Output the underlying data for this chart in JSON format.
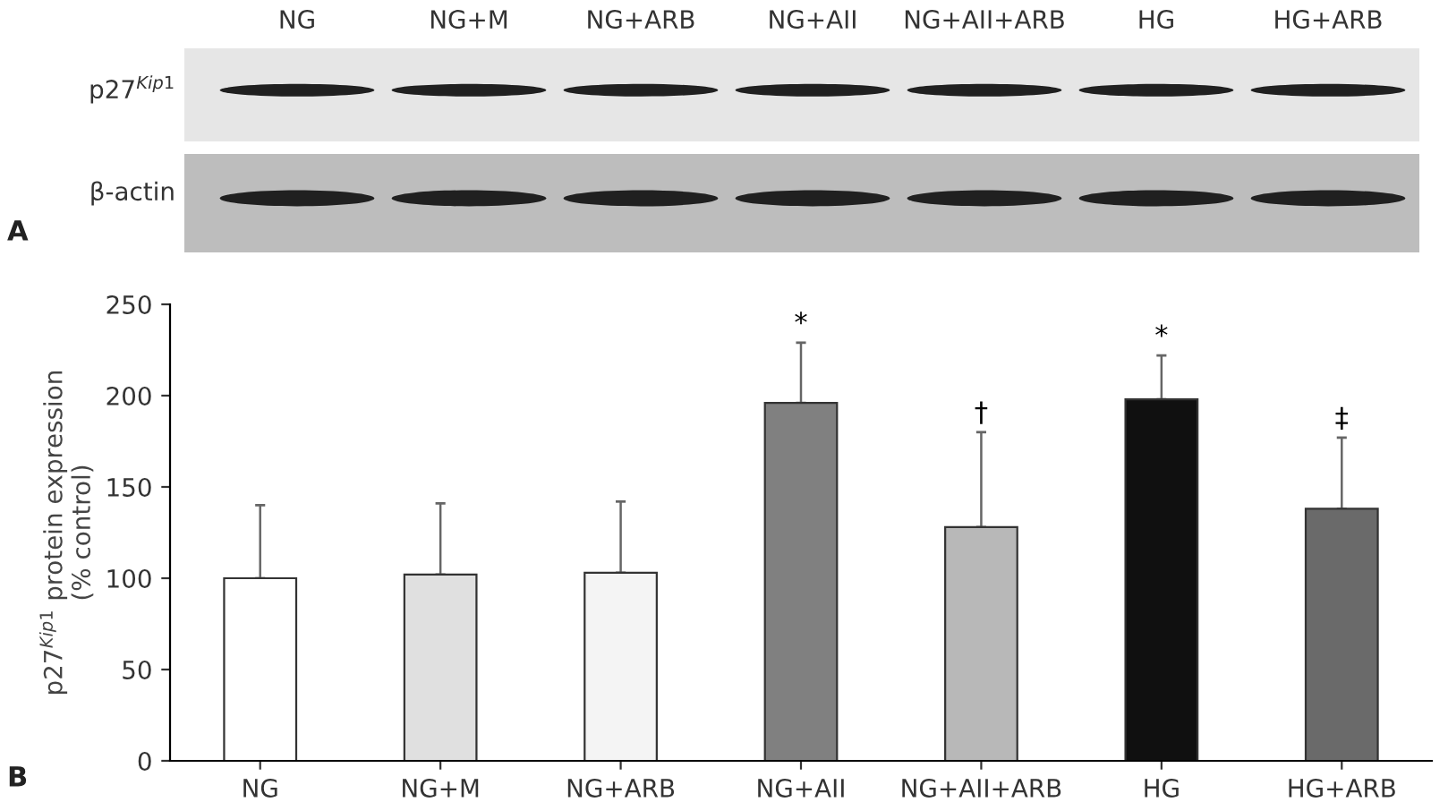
{
  "chart_data": [
    {
      "type": "other",
      "categories": [
        "NG",
        "NG+M",
        "NG+ARB",
        "NG+AII",
        "NG+AII+ARB",
        "HG",
        "HG+ARB"
      ],
      "annotations": [
        "p27$^{Kip1}$",
        "β-actin",
        "A"
      ]
    },
    {
      "type": "bar",
      "categories": [
        "NG",
        "NG+M",
        "NG+ARB",
        "NG+AII",
        "NG+AII+ARB",
        "HG",
        "HG+ARB"
      ],
      "values": [
        100,
        102,
        103,
        196,
        128,
        198,
        138
      ],
      "errors": [
        [
          100,
          140
        ],
        [
          102,
          141
        ],
        [
          103,
          142
        ],
        [
          196,
          229
        ],
        [
          128,
          180
        ],
        [
          198,
          222
        ],
        [
          138,
          177
        ]
      ],
      "colors": [
        "#ffffff",
        "#e0e0e0",
        "#f4f4f4",
        "#808080",
        "#b8b8b8",
        "#101010",
        "#6a6a6a"
      ],
      "ylabel": "p27$^{Kip1}$ protein expression\n(% control)",
      "ylim": [
        0,
        250
      ],
      "yticks": [
        0,
        50,
        100,
        150,
        200,
        250
      ],
      "grid": false,
      "legend": false,
      "annotations": [
        {
          "text": "*",
          "x": "NG+AII",
          "y": 229
        },
        {
          "text": "†",
          "x": "NG+AII+ARB",
          "y": 180
        },
        {
          "text": "*",
          "x": "HG",
          "y": 222
        },
        {
          "text": "‡",
          "x": "HG+ARB",
          "y": 177
        },
        "B"
      ]
    }
  ]
}
